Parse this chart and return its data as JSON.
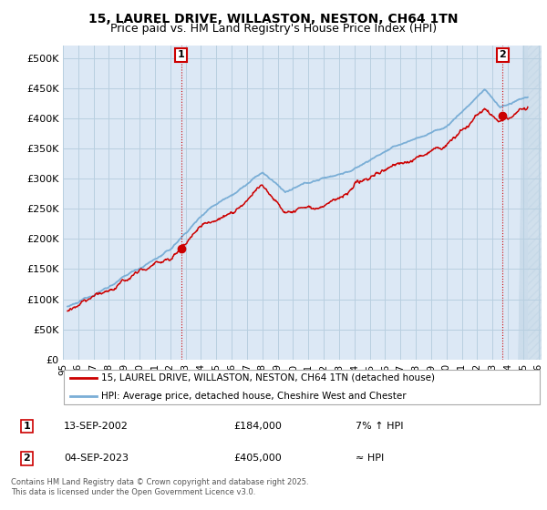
{
  "title": "15, LAUREL DRIVE, WILLASTON, NESTON, CH64 1TN",
  "subtitle": "Price paid vs. HM Land Registry's House Price Index (HPI)",
  "ylabel_ticks": [
    "£0",
    "£50K",
    "£100K",
    "£150K",
    "£200K",
    "£250K",
    "£300K",
    "£350K",
    "£400K",
    "£450K",
    "£500K"
  ],
  "ytick_values": [
    0,
    50000,
    100000,
    150000,
    200000,
    250000,
    300000,
    350000,
    400000,
    450000,
    500000
  ],
  "ylim": [
    0,
    520000
  ],
  "xlim_start": 1995.3,
  "xlim_end": 2026.2,
  "chart_bg_color": "#dce8f5",
  "background_color": "#ffffff",
  "grid_color": "#b8cfe0",
  "hpi_color": "#7aaed6",
  "price_color": "#cc0000",
  "hatch_color": "#c8d8e8",
  "marker1_date": 2002.7,
  "marker1_price": 184000,
  "marker2_date": 2023.67,
  "marker2_price": 405000,
  "data_end": 2025.3,
  "legend_label1": "15, LAUREL DRIVE, WILLASTON, NESTON, CH64 1TN (detached house)",
  "legend_label2": "HPI: Average price, detached house, Cheshire West and Chester",
  "sale1_label": "1",
  "sale1_date": "13-SEP-2002",
  "sale1_price": "£184,000",
  "sale1_hpi": "7% ↑ HPI",
  "sale2_label": "2",
  "sale2_date": "04-SEP-2023",
  "sale2_price": "£405,000",
  "sale2_hpi": "≈ HPI",
  "footer": "Contains HM Land Registry data © Crown copyright and database right 2025.\nThis data is licensed under the Open Government Licence v3.0.",
  "title_fontsize": 10,
  "subtitle_fontsize": 9,
  "tick_fontsize": 7.5,
  "legend_fontsize": 8
}
